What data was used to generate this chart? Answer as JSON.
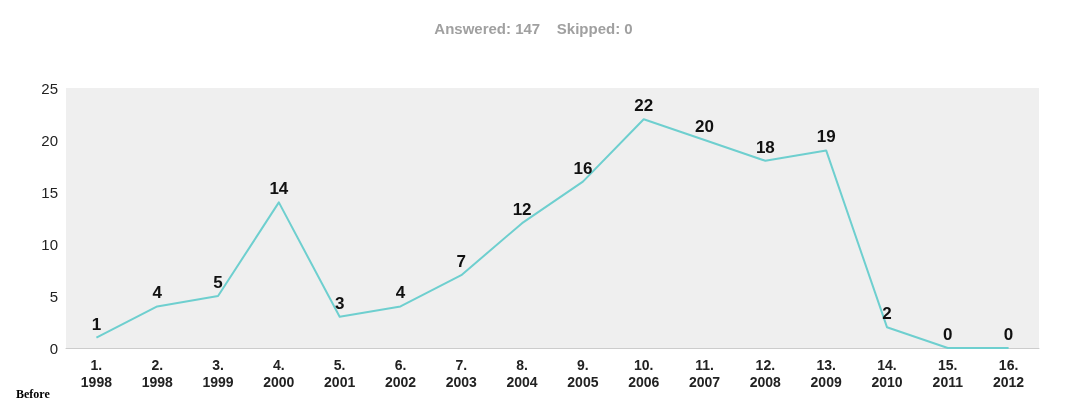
{
  "chart_data": {
    "type": "line",
    "title": "Answered: 147    Skipped: 0",
    "categories": [
      "1.\n1998",
      "2.\n1998",
      "3.\n1999",
      "4.\n2000",
      "5.\n2001",
      "6.\n2002",
      "7.\n2003",
      "8.\n2004",
      "9.\n2005",
      "10.\n2006",
      "11.\n2007",
      "12.\n2008",
      "13.\n2009",
      "14.\n2010",
      "15.\n2011",
      "16.\n2012"
    ],
    "values": [
      1,
      4,
      5,
      14,
      3,
      4,
      7,
      12,
      16,
      22,
      20,
      18,
      19,
      2,
      0,
      0
    ],
    "color": "#6ecfcf",
    "ylim": [
      0,
      25
    ],
    "yticks": [
      0,
      5,
      10,
      15,
      20,
      25
    ],
    "grid": false,
    "data_labels": true,
    "marker": "none",
    "line_style": "solid",
    "annotations": [
      "Before"
    ]
  }
}
